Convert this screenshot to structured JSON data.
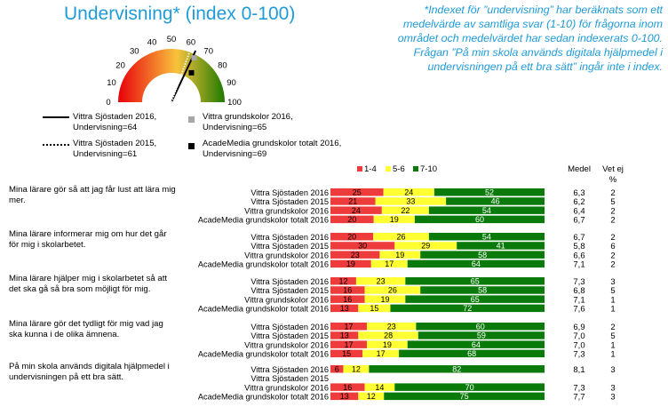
{
  "title": "Undervisning* (index 0-100)",
  "footnote": "*Indexet för ”undervisning” har beräknats som ett medelvärde av samtliga svar (1-10) för frågorna inom området och medelvärdet har sedan indexerats 0-100. Frågan ”På min skola används digitala hjälpmedel i undervisningen på ett bra sätt” ingår inte i index.",
  "gauge": {
    "min": 0,
    "max": 100,
    "ticks": [
      "0",
      "10",
      "20",
      "30",
      "40",
      "50",
      "60",
      "70",
      "80",
      "90",
      "100"
    ],
    "legend": [
      {
        "key": "vs2016",
        "label": "Vittra Sjöstaden 2016, Undervisning=64",
        "value": 64,
        "style": "solid"
      },
      {
        "key": "vs2015",
        "label": "Vittra Sjöstaden 2015, Undervisning=61",
        "value": 61,
        "style": "dotted"
      },
      {
        "key": "vg2016",
        "label": "Vittra grundskolor 2016, Undervisning=65",
        "value": 65,
        "style": "square",
        "color": "#a6a6a6"
      },
      {
        "key": "am2016",
        "label": "AcadeMedia grundskolor totalt 2016, Undervisning=69",
        "value": 69,
        "style": "square",
        "color": "#000000"
      }
    ]
  },
  "colors": {
    "red": "#ee3b3b",
    "yellow": "#ffff33",
    "green": "#0a7a0a",
    "gaugeLow": "#e8000b",
    "gaugeMid": "#f9c33c",
    "gaugeHigh": "#1f7a00"
  },
  "legend_labels": [
    "1-4",
    "5-6",
    "7-10"
  ],
  "col_medel": "Medel",
  "col_vetej": "Vet ej",
  "col_vetej_unit": "%",
  "chart_data": {
    "type": "bar",
    "orientation": "horizontal-stacked",
    "segments": [
      "1-4",
      "5-6",
      "7-10"
    ],
    "groups": [
      {
        "question": "Mina lärare gör så att jag får lust att lära mig mer.",
        "rows": [
          {
            "name": "Vittra Sjöstaden 2016",
            "values": [
              25,
              24,
              52
            ],
            "medel": "6,3",
            "vetej": "2"
          },
          {
            "name": "Vittra Sjöstaden 2015",
            "values": [
              21,
              33,
              46
            ],
            "medel": "6,2",
            "vetej": "5"
          },
          {
            "name": "Vittra grundskolor 2016",
            "values": [
              24,
              22,
              54
            ],
            "medel": "6,4",
            "vetej": "2"
          },
          {
            "name": "AcadeMedia grundskolor totalt 2016",
            "values": [
              20,
              19,
              60
            ],
            "medel": "6,7",
            "vetej": "2"
          }
        ]
      },
      {
        "question": "Mina lärare informerar mig om hur det går för mig i skolarbetet.",
        "rows": [
          {
            "name": "Vittra Sjöstaden 2016",
            "values": [
              20,
              26,
              54
            ],
            "medel": "6,7",
            "vetej": "2"
          },
          {
            "name": "Vittra Sjöstaden 2015",
            "values": [
              30,
              29,
              41
            ],
            "medel": "5,8",
            "vetej": "6"
          },
          {
            "name": "Vittra grundskolor 2016",
            "values": [
              23,
              19,
              58
            ],
            "medel": "6,6",
            "vetej": "2"
          },
          {
            "name": "AcadeMedia grundskolor totalt 2016",
            "values": [
              19,
              17,
              64
            ],
            "medel": "7,1",
            "vetej": "2"
          }
        ]
      },
      {
        "question": "Mina lärare hjälper mig i skolarbetet så att det ska gå så bra som möjligt för mig.",
        "rows": [
          {
            "name": "Vittra Sjöstaden 2016",
            "values": [
              12,
              23,
              65
            ],
            "medel": "7,3",
            "vetej": "3"
          },
          {
            "name": "Vittra Sjöstaden 2015",
            "values": [
              16,
              26,
              58
            ],
            "medel": "6,8",
            "vetej": "5"
          },
          {
            "name": "Vittra grundskolor 2016",
            "values": [
              16,
              19,
              65
            ],
            "medel": "7,1",
            "vetej": "1"
          },
          {
            "name": "AcadeMedia grundskolor totalt 2016",
            "values": [
              13,
              15,
              72
            ],
            "medel": "7,6",
            "vetej": "1"
          }
        ]
      },
      {
        "question": "Mina lärare gör det tydligt för mig vad jag ska kunna i de olika ämnena.",
        "rows": [
          {
            "name": "Vittra Sjöstaden 2016",
            "values": [
              17,
              23,
              60
            ],
            "medel": "6,9",
            "vetej": "2"
          },
          {
            "name": "Vittra Sjöstaden 2015",
            "values": [
              13,
              28,
              59
            ],
            "medel": "7,0",
            "vetej": "5"
          },
          {
            "name": "Vittra grundskolor 2016",
            "values": [
              17,
              19,
              64
            ],
            "medel": "7,0",
            "vetej": "1"
          },
          {
            "name": "AcadeMedia grundskolor totalt 2016",
            "values": [
              15,
              17,
              68
            ],
            "medel": "7,3",
            "vetej": "1"
          }
        ]
      },
      {
        "question": "På min skola används digitala hjälpmedel i undervisningen på ett bra sätt.",
        "rows": [
          {
            "name": "Vittra Sjöstaden 2016",
            "values": [
              6,
              12,
              82
            ],
            "medel": "8,1",
            "vetej": "3"
          },
          {
            "name": "Vittra Sjöstaden 2015",
            "values": null,
            "medel": "",
            "vetej": ""
          },
          {
            "name": "Vittra grundskolor 2016",
            "values": [
              16,
              14,
              70
            ],
            "medel": "7,3",
            "vetej": "3"
          },
          {
            "name": "AcadeMedia grundskolor totalt 2016",
            "values": [
              13,
              12,
              75
            ],
            "medel": "7,7",
            "vetej": "3"
          }
        ]
      }
    ]
  }
}
